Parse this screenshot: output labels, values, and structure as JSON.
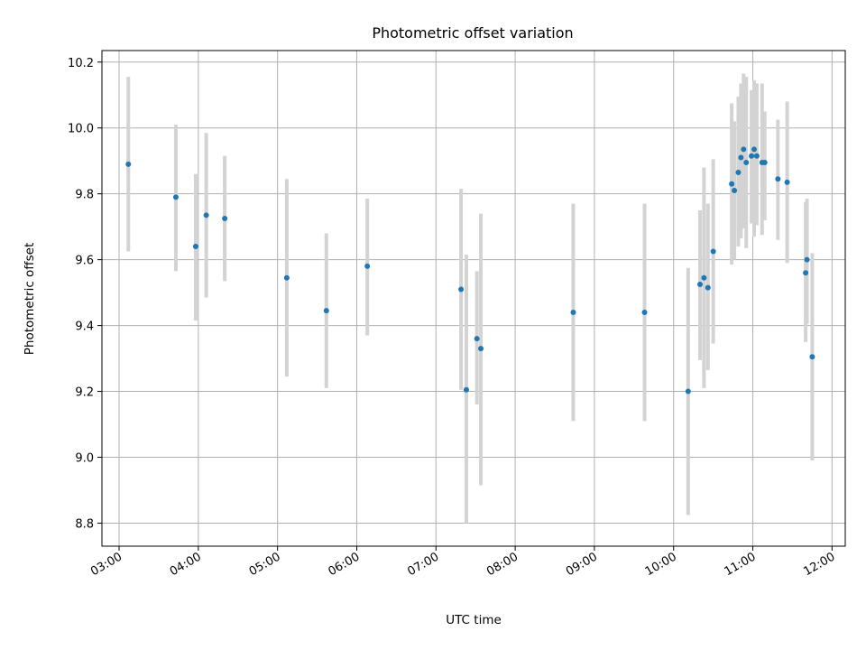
{
  "chart_data": {
    "type": "scatter",
    "title": "Photometric offset variation",
    "xlabel": "UTC time",
    "ylabel": "Photometric offset",
    "x_axis": "time",
    "xlim": [
      "02:47",
      "12:10"
    ],
    "ylim": [
      8.73,
      10.235
    ],
    "x_ticks": [
      "03:00",
      "04:00",
      "05:00",
      "06:00",
      "07:00",
      "08:00",
      "09:00",
      "10:00",
      "11:00",
      "12:00"
    ],
    "y_ticks": [
      "8.8",
      "9.0",
      "9.2",
      "9.4",
      "9.6",
      "9.8",
      "10.0",
      "10.2"
    ],
    "grid": true,
    "legend": "none",
    "point_color": "#1f77b4",
    "errorbar_color": "#d3d3d3",
    "points": [
      {
        "t": "03:07",
        "y": 9.89,
        "lo": 9.625,
        "hi": 10.155
      },
      {
        "t": "03:43",
        "y": 9.79,
        "lo": 9.565,
        "hi": 10.01
      },
      {
        "t": "03:58",
        "y": 9.64,
        "lo": 9.415,
        "hi": 9.86
      },
      {
        "t": "04:06",
        "y": 9.735,
        "lo": 9.485,
        "hi": 9.985
      },
      {
        "t": "04:20",
        "y": 9.725,
        "lo": 9.535,
        "hi": 9.915
      },
      {
        "t": "05:07",
        "y": 9.545,
        "lo": 9.245,
        "hi": 9.845
      },
      {
        "t": "05:37",
        "y": 9.445,
        "lo": 9.21,
        "hi": 9.68
      },
      {
        "t": "06:08",
        "y": 9.58,
        "lo": 9.37,
        "hi": 9.785
      },
      {
        "t": "07:19",
        "y": 9.51,
        "lo": 9.205,
        "hi": 9.815
      },
      {
        "t": "07:23",
        "y": 9.205,
        "lo": 8.8,
        "hi": 9.615
      },
      {
        "t": "07:31",
        "y": 9.36,
        "lo": 9.16,
        "hi": 9.565
      },
      {
        "t": "07:34",
        "y": 9.33,
        "lo": 8.915,
        "hi": 9.74
      },
      {
        "t": "08:44",
        "y": 9.44,
        "lo": 9.11,
        "hi": 9.77
      },
      {
        "t": "09:38",
        "y": 9.44,
        "lo": 9.11,
        "hi": 9.77
      },
      {
        "t": "10:11",
        "y": 9.2,
        "lo": 8.825,
        "hi": 9.575
      },
      {
        "t": "10:20",
        "y": 9.525,
        "lo": 9.295,
        "hi": 9.75
      },
      {
        "t": "10:23",
        "y": 9.545,
        "lo": 9.21,
        "hi": 9.88
      },
      {
        "t": "10:26",
        "y": 9.515,
        "lo": 9.265,
        "hi": 9.77
      },
      {
        "t": "10:30",
        "y": 9.625,
        "lo": 9.345,
        "hi": 9.905
      },
      {
        "t": "10:44",
        "y": 9.83,
        "lo": 9.585,
        "hi": 10.075
      },
      {
        "t": "10:46",
        "y": 9.81,
        "lo": 9.6,
        "hi": 10.02
      },
      {
        "t": "10:49",
        "y": 9.865,
        "lo": 9.64,
        "hi": 10.095
      },
      {
        "t": "10:51",
        "y": 9.91,
        "lo": 9.665,
        "hi": 10.135
      },
      {
        "t": "10:53",
        "y": 9.935,
        "lo": 9.695,
        "hi": 10.165
      },
      {
        "t": "10:55",
        "y": 9.895,
        "lo": 9.635,
        "hi": 10.155
      },
      {
        "t": "10:59",
        "y": 9.915,
        "lo": 9.71,
        "hi": 10.115
      },
      {
        "t": "11:01",
        "y": 9.935,
        "lo": 9.67,
        "hi": 10.145
      },
      {
        "t": "11:03",
        "y": 9.915,
        "lo": 9.705,
        "hi": 10.135
      },
      {
        "t": "11:07",
        "y": 9.895,
        "lo": 9.675,
        "hi": 10.135
      },
      {
        "t": "11:09",
        "y": 9.895,
        "lo": 9.72,
        "hi": 10.05
      },
      {
        "t": "11:19",
        "y": 9.845,
        "lo": 9.66,
        "hi": 10.025
      },
      {
        "t": "11:26",
        "y": 9.835,
        "lo": 9.59,
        "hi": 10.08
      },
      {
        "t": "11:40",
        "y": 9.56,
        "lo": 9.35,
        "hi": 9.775
      },
      {
        "t": "11:41",
        "y": 9.6,
        "lo": 9.405,
        "hi": 9.785
      },
      {
        "t": "11:45",
        "y": 9.305,
        "lo": 8.99,
        "hi": 9.62
      }
    ]
  }
}
